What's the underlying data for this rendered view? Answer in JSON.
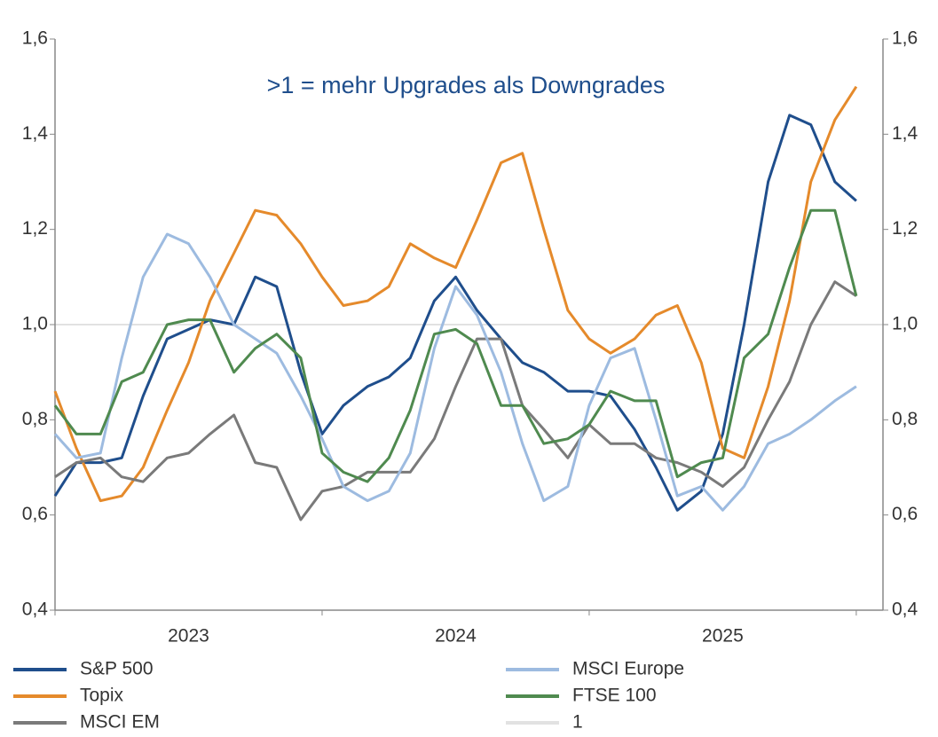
{
  "chart_data": {
    "type": "line",
    "annotation": ">1 = mehr Upgrades als Downgrades",
    "x": [
      2023,
      2023.08,
      2023.17,
      2023.25,
      2023.33,
      2023.42,
      2023.5,
      2023.58,
      2023.67,
      2023.75,
      2023.83,
      2023.92,
      2024,
      2024.08,
      2024.17,
      2024.25,
      2024.33,
      2024.42,
      2024.5,
      2024.58,
      2024.67,
      2024.75,
      2024.83,
      2024.92,
      2025,
      2025.08,
      2025.17,
      2025.25,
      2025.33,
      2025.42,
      2025.5,
      2025.58,
      2025.67,
      2025.75,
      2025.83,
      2025.92,
      2026
    ],
    "xlim": [
      2023,
      2026.1
    ],
    "xticks": [
      2023,
      2024,
      2025,
      2026
    ],
    "xticklabels": [
      {
        "value": 2023.5,
        "label": "2023"
      },
      {
        "value": 2024.5,
        "label": "2024"
      },
      {
        "value": 2025.5,
        "label": "2025"
      }
    ],
    "ylim": [
      0.4,
      1.6
    ],
    "yticks": [
      {
        "value": 0.4,
        "label": "0,4"
      },
      {
        "value": 0.6,
        "label": "0,6"
      },
      {
        "value": 0.8,
        "label": "0,8"
      },
      {
        "value": 1.0,
        "label": "1,0"
      },
      {
        "value": 1.2,
        "label": "1,2"
      },
      {
        "value": 1.4,
        "label": "1,4"
      },
      {
        "value": 1.6,
        "label": "1,6"
      }
    ],
    "y2lim": [
      0.4,
      1.6
    ],
    "y2ticks": [
      {
        "value": 0.4,
        "label": "0,4"
      },
      {
        "value": 0.6,
        "label": "0,6"
      },
      {
        "value": 0.8,
        "label": "0,8"
      },
      {
        "value": 1.0,
        "label": "1,0"
      },
      {
        "value": 1.2,
        "label": "1,2"
      },
      {
        "value": 1.4,
        "label": "1,4"
      },
      {
        "value": 1.6,
        "label": "1,6"
      }
    ],
    "series": [
      {
        "name": "S&P 500",
        "color": "#1f4e8c",
        "values": [
          0.64,
          0.71,
          0.71,
          0.72,
          0.85,
          0.97,
          0.99,
          1.01,
          1.0,
          1.1,
          1.08,
          0.9,
          0.77,
          0.83,
          0.87,
          0.89,
          0.93,
          1.05,
          1.1,
          1.03,
          0.97,
          0.92,
          0.9,
          0.86,
          0.86,
          0.85,
          0.78,
          0.7,
          0.61,
          0.65,
          0.77,
          1.0,
          1.3,
          1.44,
          1.42,
          1.3,
          1.26
        ]
      },
      {
        "name": "Topix",
        "color": "#e58a2b",
        "values": [
          0.86,
          0.74,
          0.63,
          0.64,
          0.7,
          0.82,
          0.92,
          1.05,
          1.15,
          1.24,
          1.23,
          1.17,
          1.1,
          1.04,
          1.05,
          1.08,
          1.17,
          1.14,
          1.12,
          1.22,
          1.34,
          1.36,
          1.2,
          1.03,
          0.97,
          0.94,
          0.97,
          1.02,
          1.04,
          0.92,
          0.74,
          0.72,
          0.87,
          1.05,
          1.3,
          1.43,
          1.5
        ]
      },
      {
        "name": "MSCI EM",
        "color": "#7a7a7a",
        "values": [
          0.68,
          0.71,
          0.72,
          0.68,
          0.67,
          0.72,
          0.73,
          0.77,
          0.81,
          0.71,
          0.7,
          0.59,
          0.65,
          0.66,
          0.69,
          0.69,
          0.69,
          0.76,
          0.87,
          0.97,
          0.97,
          0.83,
          0.78,
          0.72,
          0.79,
          0.75,
          0.75,
          0.72,
          0.71,
          0.69,
          0.66,
          0.7,
          0.8,
          0.88,
          1.0,
          1.09,
          1.06
        ]
      },
      {
        "name": "MSCI Europe",
        "color": "#9dbbe0",
        "values": [
          0.77,
          0.72,
          0.73,
          0.93,
          1.1,
          1.19,
          1.17,
          1.1,
          1.0,
          0.97,
          0.94,
          0.85,
          0.76,
          0.66,
          0.63,
          0.65,
          0.73,
          0.95,
          1.08,
          1.02,
          0.9,
          0.75,
          0.63,
          0.66,
          0.83,
          0.93,
          0.95,
          0.8,
          0.64,
          0.66,
          0.61,
          0.66,
          0.75,
          0.77,
          0.8,
          0.84,
          0.87
        ]
      },
      {
        "name": "FTSE 100",
        "color": "#4f8a4f",
        "values": [
          0.83,
          0.77,
          0.77,
          0.88,
          0.9,
          1.0,
          1.01,
          1.01,
          0.9,
          0.95,
          0.98,
          0.93,
          0.73,
          0.69,
          0.67,
          0.72,
          0.82,
          0.98,
          0.99,
          0.96,
          0.83,
          0.83,
          0.75,
          0.76,
          0.79,
          0.86,
          0.84,
          0.84,
          0.68,
          0.71,
          0.72,
          0.93,
          0.98,
          1.12,
          1.24,
          1.24,
          1.06
        ]
      }
    ],
    "reference_line": {
      "name": "1",
      "value": 1,
      "color": "#e2e2e2"
    }
  }
}
